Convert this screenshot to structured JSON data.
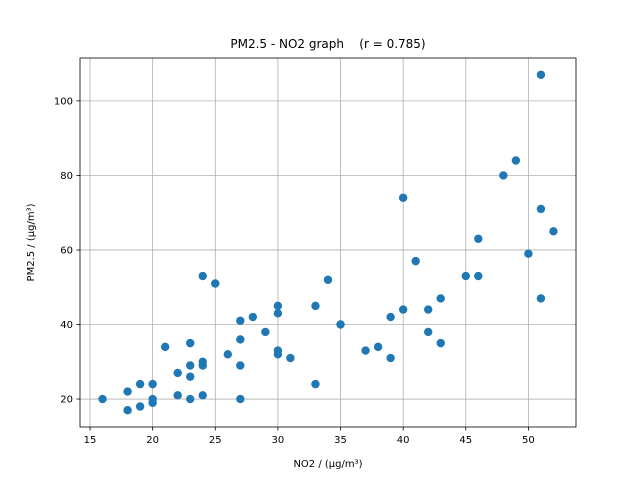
{
  "chart_data": {
    "type": "scatter",
    "title": "PM2.5 - NO2 graph    (r = 0.785)",
    "xlabel": "NO2 / (μg/m³)",
    "ylabel": "PM2.5 / (μg/m³)",
    "xlim": [
      14.2,
      53.8
    ],
    "ylim": [
      12.5,
      111.5
    ],
    "xticks": [
      15,
      20,
      25,
      30,
      35,
      40,
      45,
      50
    ],
    "yticks": [
      20,
      40,
      60,
      80,
      100
    ],
    "grid": true,
    "color": "#1f77b4",
    "points": [
      [
        16,
        20
      ],
      [
        18,
        17
      ],
      [
        18,
        22
      ],
      [
        19,
        18
      ],
      [
        19,
        24
      ],
      [
        20,
        19
      ],
      [
        20,
        20
      ],
      [
        20,
        24
      ],
      [
        21,
        34
      ],
      [
        22,
        21
      ],
      [
        22,
        27
      ],
      [
        23,
        20
      ],
      [
        23,
        26
      ],
      [
        23,
        29
      ],
      [
        23,
        35
      ],
      [
        24,
        21
      ],
      [
        24,
        29
      ],
      [
        24,
        30
      ],
      [
        24,
        53
      ],
      [
        25,
        51
      ],
      [
        26,
        32
      ],
      [
        27,
        20
      ],
      [
        27,
        29
      ],
      [
        27,
        36
      ],
      [
        27,
        41
      ],
      [
        28,
        42
      ],
      [
        29,
        38
      ],
      [
        30,
        32
      ],
      [
        30,
        33
      ],
      [
        30,
        43
      ],
      [
        30,
        45
      ],
      [
        31,
        31
      ],
      [
        33,
        24
      ],
      [
        33,
        45
      ],
      [
        34,
        52
      ],
      [
        35,
        40
      ],
      [
        37,
        33
      ],
      [
        38,
        34
      ],
      [
        39,
        31
      ],
      [
        39,
        42
      ],
      [
        40,
        44
      ],
      [
        40,
        74
      ],
      [
        41,
        57
      ],
      [
        42,
        38
      ],
      [
        42,
        44
      ],
      [
        43,
        35
      ],
      [
        43,
        47
      ],
      [
        45,
        53
      ],
      [
        46,
        53
      ],
      [
        46,
        63
      ],
      [
        48,
        80
      ],
      [
        49,
        84
      ],
      [
        50,
        59
      ],
      [
        51,
        47
      ],
      [
        51,
        71
      ],
      [
        51,
        107
      ],
      [
        52,
        65
      ]
    ]
  }
}
